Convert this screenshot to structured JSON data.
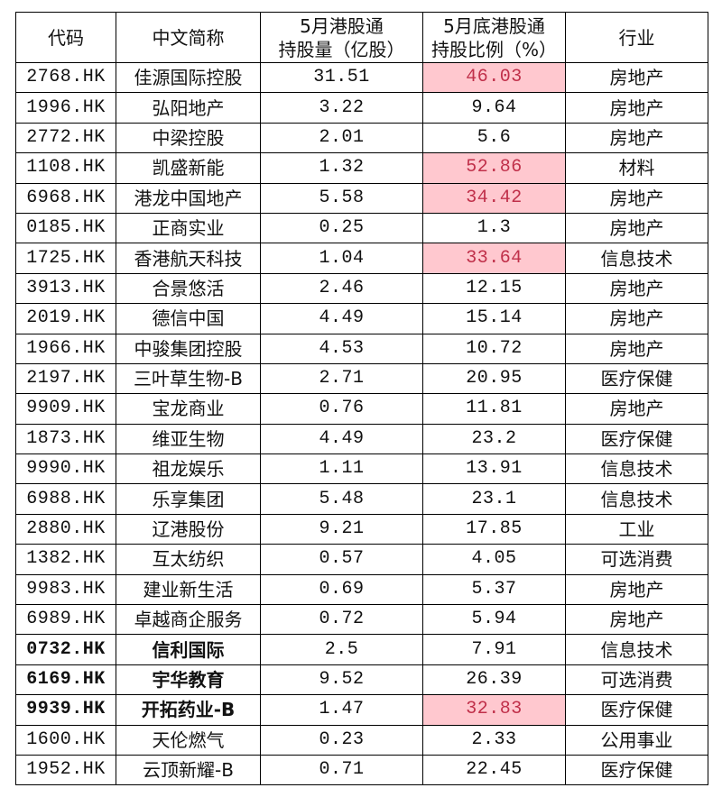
{
  "headers": [
    "代码",
    "中文简称",
    "5月港股通\n持股量（亿股）",
    "5月底港股通\n持股比例（%）",
    "行业"
  ],
  "highlight_color": "#ffc8cf",
  "highlight_text_color": "#c0304a",
  "rows": [
    {
      "code": "2768.HK",
      "name": "佳源国际控股",
      "holding": "31.51",
      "ratio": "46.03",
      "industry": "房地产",
      "highlight": true,
      "bold": false
    },
    {
      "code": "1996.HK",
      "name": "弘阳地产",
      "holding": "3.22",
      "ratio": "9.64",
      "industry": "房地产",
      "highlight": false,
      "bold": false
    },
    {
      "code": "2772.HK",
      "name": "中梁控股",
      "holding": "2.01",
      "ratio": "5.6",
      "industry": "房地产",
      "highlight": false,
      "bold": false
    },
    {
      "code": "1108.HK",
      "name": "凯盛新能",
      "holding": "1.32",
      "ratio": "52.86",
      "industry": "材料",
      "highlight": true,
      "bold": false
    },
    {
      "code": "6968.HK",
      "name": "港龙中国地产",
      "holding": "5.58",
      "ratio": "34.42",
      "industry": "房地产",
      "highlight": true,
      "bold": false
    },
    {
      "code": "0185.HK",
      "name": "正商实业",
      "holding": "0.25",
      "ratio": "1.3",
      "industry": "房地产",
      "highlight": false,
      "bold": false
    },
    {
      "code": "1725.HK",
      "name": "香港航天科技",
      "holding": "1.04",
      "ratio": "33.64",
      "industry": "信息技术",
      "highlight": true,
      "bold": false
    },
    {
      "code": "3913.HK",
      "name": "合景悠活",
      "holding": "2.46",
      "ratio": "12.15",
      "industry": "房地产",
      "highlight": false,
      "bold": false
    },
    {
      "code": "2019.HK",
      "name": "德信中国",
      "holding": "4.49",
      "ratio": "15.14",
      "industry": "房地产",
      "highlight": false,
      "bold": false
    },
    {
      "code": "1966.HK",
      "name": "中骏集团控股",
      "holding": "4.53",
      "ratio": "10.72",
      "industry": "房地产",
      "highlight": false,
      "bold": false
    },
    {
      "code": "2197.HK",
      "name": "三叶草生物-B",
      "holding": "2.71",
      "ratio": "20.95",
      "industry": "医疗保健",
      "highlight": false,
      "bold": false
    },
    {
      "code": "9909.HK",
      "name": "宝龙商业",
      "holding": "0.76",
      "ratio": "11.81",
      "industry": "房地产",
      "highlight": false,
      "bold": false
    },
    {
      "code": "1873.HK",
      "name": "维亚生物",
      "holding": "4.49",
      "ratio": "23.2",
      "industry": "医疗保健",
      "highlight": false,
      "bold": false
    },
    {
      "code": "9990.HK",
      "name": "祖龙娱乐",
      "holding": "1.11",
      "ratio": "13.91",
      "industry": "信息技术",
      "highlight": false,
      "bold": false
    },
    {
      "code": "6988.HK",
      "name": "乐享集团",
      "holding": "5.48",
      "ratio": "23.1",
      "industry": "信息技术",
      "highlight": false,
      "bold": false
    },
    {
      "code": "2880.HK",
      "name": "辽港股份",
      "holding": "9.21",
      "ratio": "17.85",
      "industry": "工业",
      "highlight": false,
      "bold": false
    },
    {
      "code": "1382.HK",
      "name": "互太纺织",
      "holding": "0.57",
      "ratio": "4.05",
      "industry": "可选消费",
      "highlight": false,
      "bold": false
    },
    {
      "code": "9983.HK",
      "name": "建业新生活",
      "holding": "0.69",
      "ratio": "5.37",
      "industry": "房地产",
      "highlight": false,
      "bold": false
    },
    {
      "code": "6989.HK",
      "name": "卓越商企服务",
      "holding": "0.72",
      "ratio": "5.94",
      "industry": "房地产",
      "highlight": false,
      "bold": false
    },
    {
      "code": "0732.HK",
      "name": "信利国际",
      "holding": "2.5",
      "ratio": "7.91",
      "industry": "信息技术",
      "highlight": false,
      "bold": true
    },
    {
      "code": "6169.HK",
      "name": "宇华教育",
      "holding": "9.52",
      "ratio": "26.39",
      "industry": "可选消费",
      "highlight": false,
      "bold": true
    },
    {
      "code": "9939.HK",
      "name": "开拓药业-B",
      "holding": "1.47",
      "ratio": "32.83",
      "industry": "医疗保健",
      "highlight": true,
      "bold": true
    },
    {
      "code": "1600.HK",
      "name": "天伦燃气",
      "holding": "0.23",
      "ratio": "2.33",
      "industry": "公用事业",
      "highlight": false,
      "bold": false
    },
    {
      "code": "1952.HK",
      "name": "云顶新耀-B",
      "holding": "0.71",
      "ratio": "22.45",
      "industry": "医疗保健",
      "highlight": false,
      "bold": false
    }
  ]
}
